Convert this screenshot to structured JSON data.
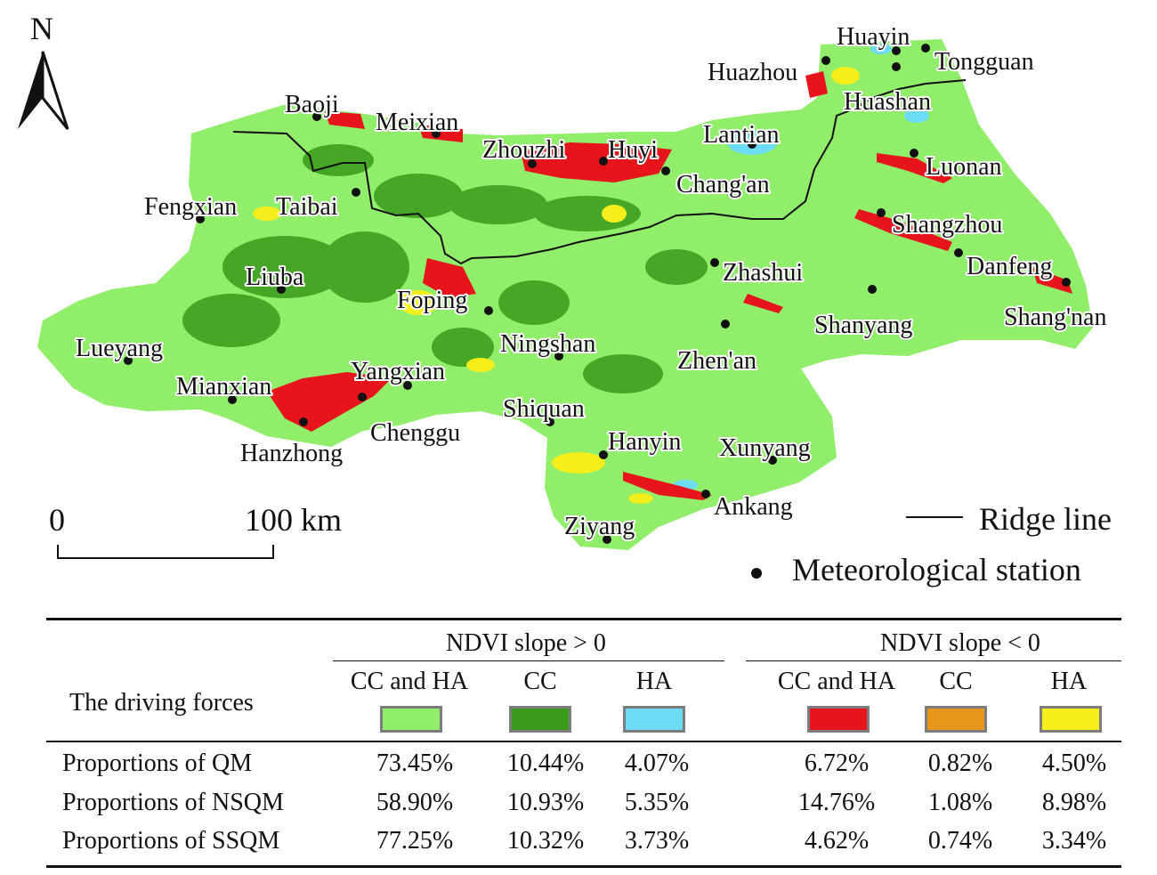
{
  "north_arrow": {
    "label": "N"
  },
  "scale_bar": {
    "start": "0",
    "end": "100 km"
  },
  "legend": {
    "ridge_line": "Ridge line",
    "station": "Meteorological station"
  },
  "stations": [
    {
      "name": "Huayin"
    },
    {
      "name": "Tongguan"
    },
    {
      "name": "Huazhou"
    },
    {
      "name": "Huashan"
    },
    {
      "name": "Baoji"
    },
    {
      "name": "Meixian"
    },
    {
      "name": "Lantian"
    },
    {
      "name": "Zhouzhi"
    },
    {
      "name": "Huyi"
    },
    {
      "name": "Chang'an"
    },
    {
      "name": "Luonan"
    },
    {
      "name": "Fengxian"
    },
    {
      "name": "Taibai"
    },
    {
      "name": "Shangzhou"
    },
    {
      "name": "Danfeng"
    },
    {
      "name": "Liuba"
    },
    {
      "name": "Zhashui"
    },
    {
      "name": "Foping"
    },
    {
      "name": "Shang'nan"
    },
    {
      "name": "Shanyang"
    },
    {
      "name": "Ningshan"
    },
    {
      "name": "Lueyang"
    },
    {
      "name": "Zhen'an"
    },
    {
      "name": "Mianxian"
    },
    {
      "name": "Yangxian"
    },
    {
      "name": "Shiquan"
    },
    {
      "name": "Chenggu"
    },
    {
      "name": "Hanzhong"
    },
    {
      "name": "Hanyin"
    },
    {
      "name": "Xunyang"
    },
    {
      "name": "Ankang"
    },
    {
      "name": "Ziyang"
    }
  ],
  "colors": {
    "cc_and_ha_pos": "#90ee6a",
    "cc_pos": "#3a9a1a",
    "ha_pos": "#6cdcf5",
    "cc_and_ha_neg": "#e8141c",
    "cc_neg": "#e8961a",
    "ha_neg": "#f5ee1a",
    "ridge": "#111111"
  },
  "table": {
    "row_header": "The driving forces",
    "groups": [
      "NDVI slope > 0",
      "NDVI slope < 0"
    ],
    "columns": [
      "CC and HA",
      "CC",
      "HA",
      "CC and HA",
      "CC",
      "HA"
    ],
    "rows": [
      {
        "label": "Proportions of QM",
        "values": [
          "73.45%",
          "10.44%",
          "4.07%",
          "6.72%",
          "0.82%",
          "4.50%"
        ]
      },
      {
        "label": "Proportions of NSQM",
        "values": [
          "58.90%",
          "10.93%",
          "5.35%",
          "14.76%",
          "1.08%",
          "8.98%"
        ]
      },
      {
        "label": "Proportions of SSQM",
        "values": [
          "77.25%",
          "10.32%",
          "3.73%",
          "4.62%",
          "0.74%",
          "3.34%"
        ]
      }
    ]
  }
}
